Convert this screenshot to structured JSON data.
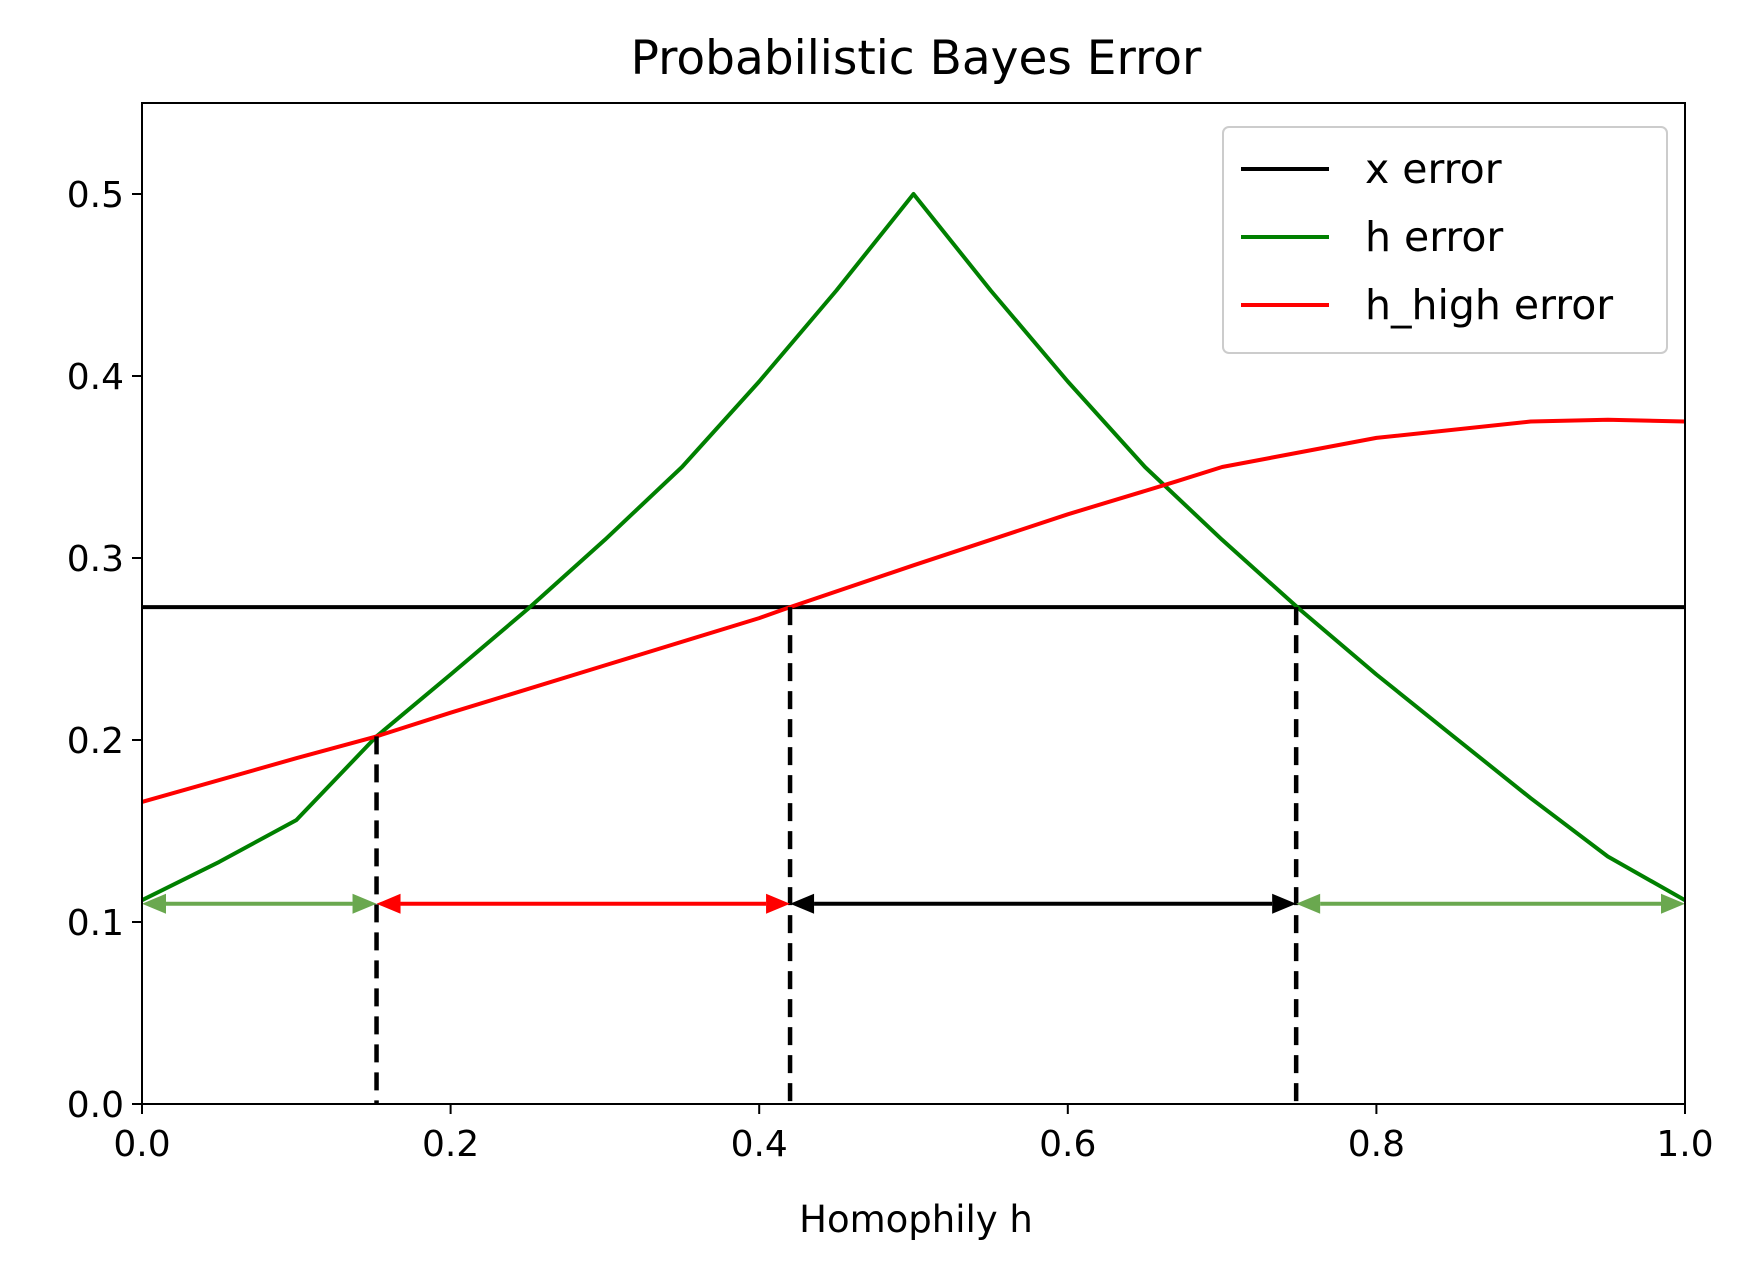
{
  "chart_data": {
    "type": "line",
    "title": "Probabilistic Bayes Error",
    "xlabel": "Homophily h",
    "ylabel": "",
    "xlim": [
      0.0,
      1.0
    ],
    "ylim": [
      0.0,
      0.55
    ],
    "xticks": [
      0.0,
      0.2,
      0.4,
      0.6,
      0.8,
      1.0
    ],
    "xtick_labels": [
      "0.0",
      "0.2",
      "0.4",
      "0.6",
      "0.8",
      "1.0"
    ],
    "yticks": [
      0.0,
      0.1,
      0.2,
      0.3,
      0.4,
      0.5
    ],
    "ytick_labels": [
      "0.0",
      "0.1",
      "0.2",
      "0.3",
      "0.4",
      "0.5"
    ],
    "grid": false,
    "legend_position": "top-right",
    "series": [
      {
        "name": "x error",
        "color": "#000000",
        "x": [
          0.0,
          1.0
        ],
        "y": [
          0.273,
          0.273
        ]
      },
      {
        "name": "h error",
        "color": "#008000",
        "x": [
          0.0,
          0.05,
          0.1,
          0.152,
          0.2,
          0.25,
          0.3,
          0.35,
          0.4,
          0.45,
          0.5,
          0.55,
          0.6,
          0.65,
          0.7,
          0.75,
          0.8,
          0.85,
          0.9,
          0.95,
          1.0
        ],
        "y": [
          0.112,
          0.133,
          0.156,
          0.202,
          0.236,
          0.272,
          0.31,
          0.35,
          0.397,
          0.447,
          0.5,
          0.447,
          0.397,
          0.35,
          0.31,
          0.272,
          0.236,
          0.202,
          0.168,
          0.136,
          0.112
        ]
      },
      {
        "name": "h_high error",
        "color": "#ff0000",
        "x": [
          0.0,
          0.1,
          0.152,
          0.2,
          0.3,
          0.4,
          0.42,
          0.5,
          0.6,
          0.67,
          0.7,
          0.8,
          0.9,
          0.95,
          1.0
        ],
        "y": [
          0.166,
          0.19,
          0.202,
          0.215,
          0.241,
          0.267,
          0.273,
          0.296,
          0.324,
          0.342,
          0.35,
          0.366,
          0.375,
          0.376,
          0.375
        ]
      }
    ],
    "vlines": [
      {
        "x": 0.152,
        "y_top": 0.202,
        "style": "dashed",
        "color": "#000000"
      },
      {
        "x": 0.42,
        "y_top": 0.273,
        "style": "dashed",
        "color": "#000000"
      },
      {
        "x": 0.748,
        "y_top": 0.273,
        "style": "dashed",
        "color": "#000000"
      }
    ],
    "range_arrows": [
      {
        "from": 0.0,
        "to": 0.152,
        "y": 0.11,
        "color": "#6aa84f"
      },
      {
        "from": 0.152,
        "to": 0.42,
        "y": 0.11,
        "color": "#ff0000"
      },
      {
        "from": 0.42,
        "to": 0.748,
        "y": 0.11,
        "color": "#000000"
      },
      {
        "from": 0.748,
        "to": 1.0,
        "y": 0.11,
        "color": "#6aa84f"
      }
    ]
  }
}
